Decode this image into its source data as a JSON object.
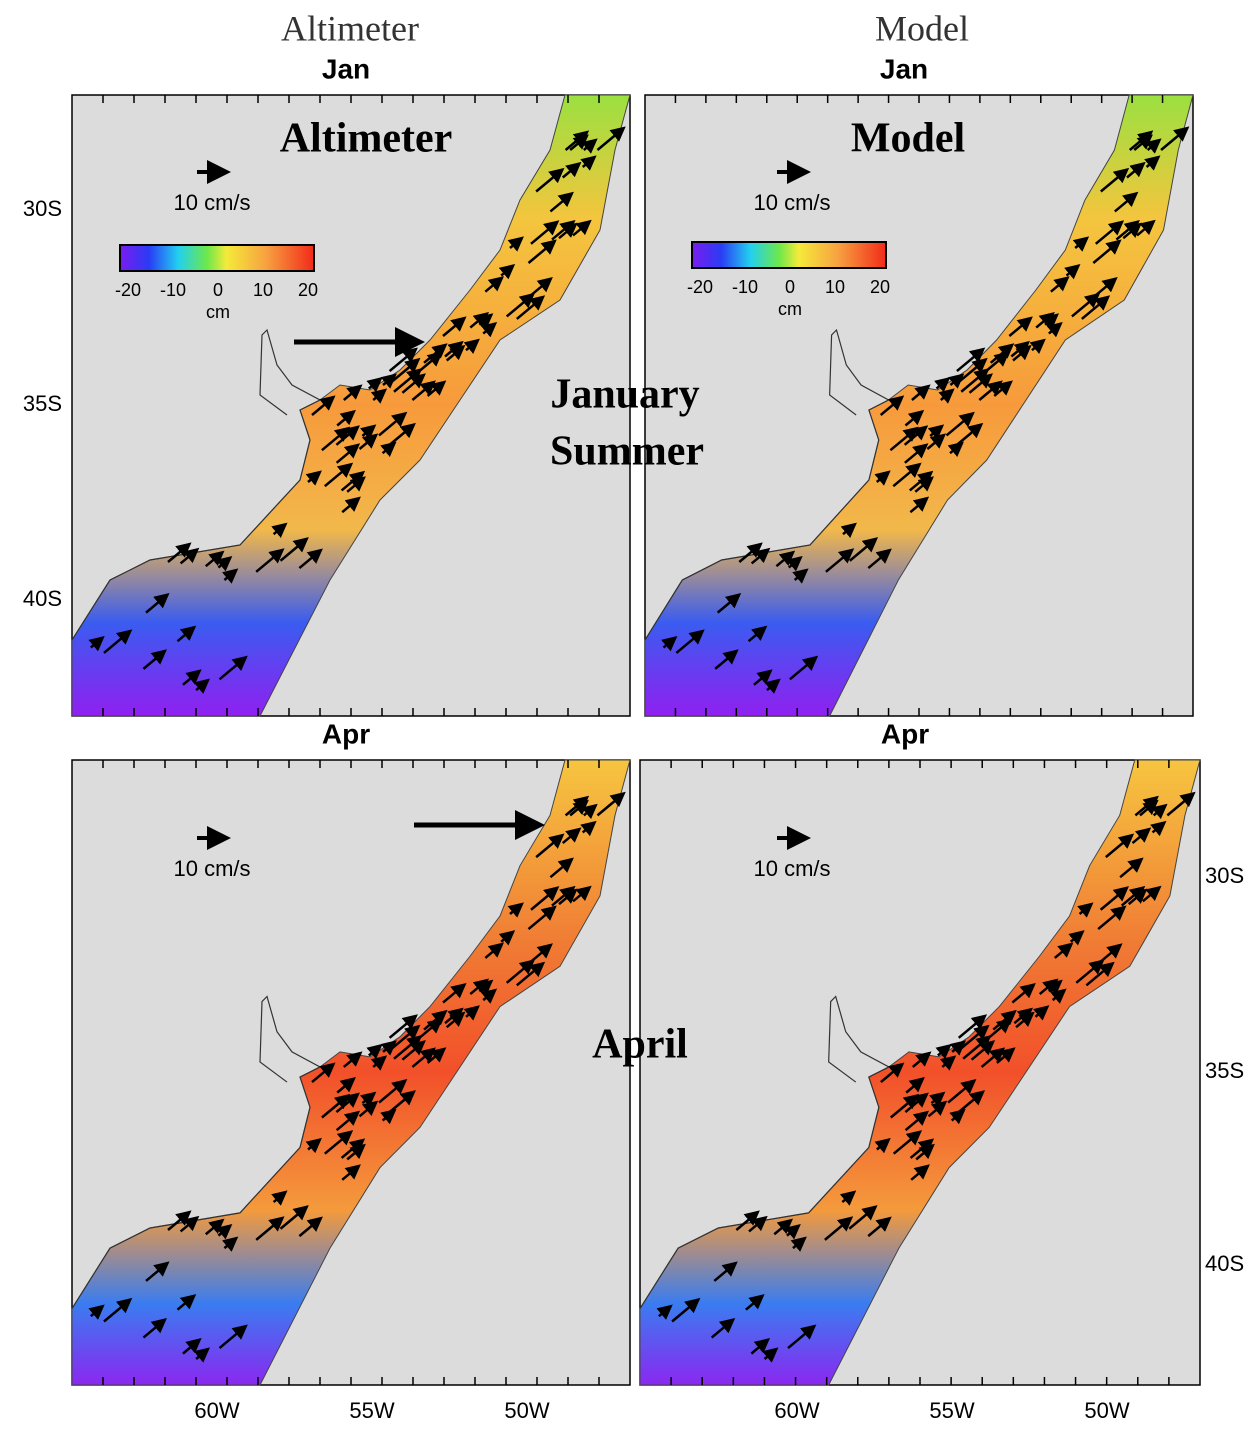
{
  "column_headers": [
    "Altimeter",
    "Model"
  ],
  "panels": [
    {
      "month": "Jan",
      "overlay_title": "Altimeter",
      "scale_label": "10 cm/s",
      "colorbar": {
        "ticks": [
          "-20",
          "-10",
          "0",
          "10",
          "20"
        ],
        "unit": "cm"
      }
    },
    {
      "month": "Jan",
      "overlay_title": "Model",
      "scale_label": "10 cm/s",
      "colorbar": {
        "ticks": [
          "-20",
          "-10",
          "0",
          "10",
          "20"
        ],
        "unit": "cm"
      }
    },
    {
      "month": "Apr",
      "scale_label": "10 cm/s"
    },
    {
      "month": "Apr",
      "scale_label": "10 cm/s"
    }
  ],
  "annotations": [
    "January",
    "Summer",
    "April"
  ],
  "lat_labels_left": [
    "30S",
    "35S",
    "40S"
  ],
  "lat_labels_right": [
    "30S",
    "35S",
    "40S"
  ],
  "lon_labels_left": [
    "60W",
    "55W",
    "50W"
  ],
  "lon_labels_right": [
    "60W",
    "55W",
    "50W"
  ]
}
